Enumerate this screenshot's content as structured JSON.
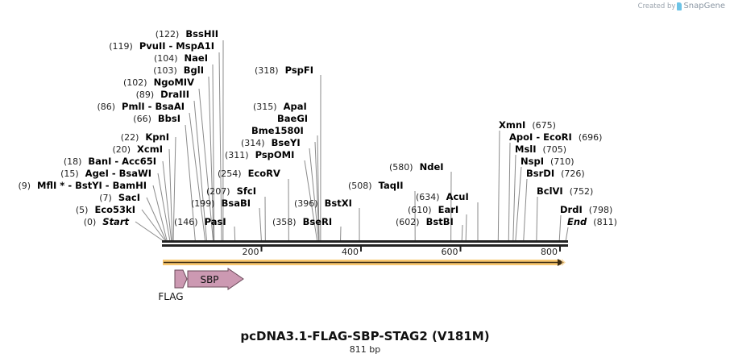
{
  "branding": {
    "prefix": "Created by",
    "name": "SnapGene"
  },
  "title": "pcDNA3.1-FLAG-SBP-STAG2 (V181M)",
  "length_label": "811 bp",
  "sequence_length": 811,
  "axis": {
    "ticks": [
      {
        "value": 200,
        "label": "200"
      },
      {
        "value": 400,
        "label": "400"
      },
      {
        "value": 600,
        "label": "600"
      },
      {
        "value": 800,
        "label": "800"
      }
    ]
  },
  "features": [
    {
      "name": "FLAG",
      "type": "arrow",
      "color": "#cc99b2"
    },
    {
      "name": "SBP",
      "type": "arrow",
      "color": "#cc99b2"
    }
  ],
  "orf_color": "#f8c76f",
  "sites_left": [
    {
      "pos": "(122)",
      "name": "BssHII",
      "site": 122
    },
    {
      "pos": "(119)",
      "name": "PvuII  - MspA1I",
      "site": 119
    },
    {
      "pos": "(104)",
      "name": "NaeI",
      "site": 104
    },
    {
      "pos": "(103)",
      "name": "BglI",
      "site": 103
    },
    {
      "pos": "(102)",
      "name": "NgoMIV",
      "site": 102
    },
    {
      "pos": "(89)",
      "name": "DraIII",
      "site": 89
    },
    {
      "pos": "(86)",
      "name": "PmlI  - BsaAI",
      "site": 86
    },
    {
      "pos": "(66)",
      "name": "BbsI",
      "site": 66
    },
    {
      "pos": "(22)",
      "name": "KpnI",
      "site": 22
    },
    {
      "pos": "(20)",
      "name": "XcmI",
      "site": 20
    },
    {
      "pos": "(18)",
      "name": "BanI  - Acc65I",
      "site": 18
    },
    {
      "pos": "(15)",
      "name": "AgeI  - BsaWI",
      "site": 15
    },
    {
      "pos": "(9)",
      "name": "MflI * - BstYI  - BamHI",
      "site": 9
    },
    {
      "pos": "(7)",
      "name": "SacI",
      "site": 7
    },
    {
      "pos": "(5)",
      "name": "Eco53kI",
      "site": 5
    },
    {
      "pos": "(0)",
      "name": "Start",
      "site": 0,
      "italic": true
    }
  ],
  "sites_mid": [
    {
      "pos": "(318)",
      "name": "PspFI",
      "site": 318
    },
    {
      "pos": "(315)",
      "name": "ApaI",
      "site": 315
    },
    {
      "pos": "",
      "name": "BaeGI",
      "site": 315
    },
    {
      "pos": "",
      "name": "Bme1580I",
      "site": 315
    },
    {
      "pos": "(314)",
      "name": "BseYI",
      "site": 314
    },
    {
      "pos": "(311)",
      "name": "PspOMI",
      "site": 311
    },
    {
      "pos": "(254)",
      "name": "EcoRV",
      "site": 254
    },
    {
      "pos": "(207)",
      "name": "SfcI",
      "site": 207
    },
    {
      "pos": "(199)",
      "name": "BsaBI",
      "site": 199
    },
    {
      "pos": "(146)",
      "name": "PasI",
      "site": 146
    },
    {
      "pos": "(396)",
      "name": "BstXI",
      "site": 396
    },
    {
      "pos": "(358)",
      "name": "BseRI",
      "site": 358
    },
    {
      "pos": "(580)",
      "name": "NdeI",
      "site": 580
    },
    {
      "pos": "(508)",
      "name": "TaqII",
      "site": 508
    },
    {
      "pos": "(634)",
      "name": "AcuI",
      "site": 634
    },
    {
      "pos": "(610)",
      "name": "EarI",
      "site": 610
    },
    {
      "pos": "(602)",
      "name": "BstBI",
      "site": 602
    }
  ],
  "sites_right": [
    {
      "name": "XmnI",
      "pos": "(675)",
      "site": 675
    },
    {
      "name": "ApoI  - EcoRI",
      "pos": "(696)",
      "site": 696
    },
    {
      "name": "MslI",
      "pos": "(705)",
      "site": 705
    },
    {
      "name": "NspI",
      "pos": "(710)",
      "site": 710
    },
    {
      "name": "BsrDI",
      "pos": "(726)",
      "site": 726
    },
    {
      "name": "BclVI",
      "pos": "(752)",
      "site": 752
    },
    {
      "name": "DrdI",
      "pos": "(798)",
      "site": 798
    },
    {
      "name": "End",
      "pos": "(811)",
      "site": 811,
      "italic": true
    }
  ]
}
